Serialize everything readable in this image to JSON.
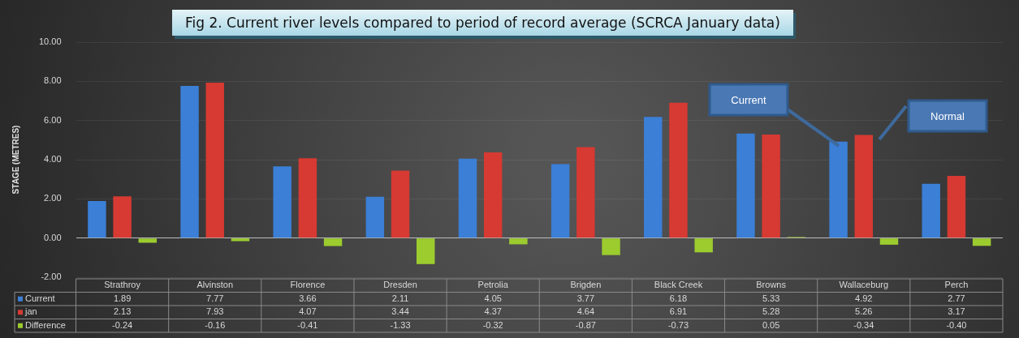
{
  "chart_data": {
    "type": "bar",
    "title": "Fig 2. Current river levels compared to period of record average (SCRCA January data)",
    "ylabel": "STAGE (METRES)",
    "categories": [
      "Strathroy",
      "Alvinston",
      "Florence",
      "Dresden",
      "Petrolia",
      "Brigden",
      "Black Creek",
      "Browns",
      "Wallaceburg",
      "Perch"
    ],
    "series": [
      {
        "name": "Current",
        "color": "#3b7fd6",
        "values": [
          1.89,
          7.77,
          3.66,
          2.11,
          4.05,
          3.77,
          6.18,
          5.33,
          4.92,
          2.77
        ],
        "value_labels": [
          "1.89",
          "7.77",
          "3.66",
          "2.11",
          "4.05",
          "3.77",
          "6.18",
          "5.33",
          "4.92",
          "2.77"
        ]
      },
      {
        "name": "jan",
        "color": "#d63a32",
        "values": [
          2.13,
          7.93,
          4.07,
          3.44,
          4.37,
          4.64,
          6.91,
          5.28,
          5.26,
          3.17
        ],
        "value_labels": [
          "2.13",
          "7.93",
          "4.07",
          "3.44",
          "4.37",
          "4.64",
          "6.91",
          "5.28",
          "5.26",
          "3.17"
        ]
      },
      {
        "name": "Difference",
        "color": "#9ccc2e",
        "values": [
          -0.24,
          -0.16,
          -0.41,
          -1.33,
          -0.32,
          -0.87,
          -0.73,
          0.05,
          -0.34,
          -0.4
        ],
        "value_labels": [
          "-0.24",
          "-0.16",
          "-0.41",
          "-1.33",
          "-0.32",
          "-0.87",
          "-0.73",
          "0.05",
          "-0.34",
          "-0.40"
        ]
      }
    ],
    "ylim": [
      -2,
      10
    ],
    "yticks": [
      {
        "value": -2,
        "label": "-2.00"
      },
      {
        "value": 0,
        "label": "0.00"
      },
      {
        "value": 2,
        "label": "2.00"
      },
      {
        "value": 4,
        "label": "4.00"
      },
      {
        "value": 6,
        "label": "6.00"
      },
      {
        "value": 8,
        "label": "8.00"
      },
      {
        "value": 10,
        "label": "10.00"
      }
    ],
    "grid": "y",
    "legend": "bottom left",
    "annotations": [
      "Current",
      "Normal"
    ]
  }
}
